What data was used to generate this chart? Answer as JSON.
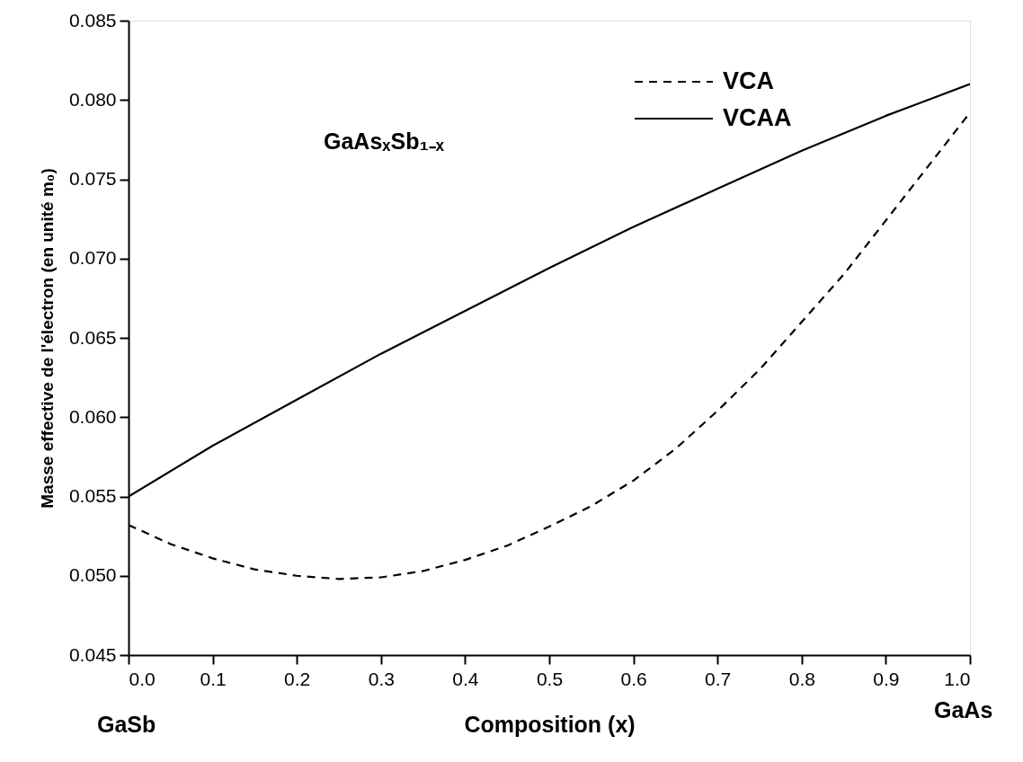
{
  "chart_data": {
    "type": "line",
    "xlabel": "Composition (x)",
    "ylabel": "Masse effective de l'électron  (en unité m₀)",
    "annotations": [
      "GaAsₓSb₁₋ₓ",
      "GaSb",
      "GaAs"
    ],
    "xlim": [
      0,
      1
    ],
    "ylim": [
      0.045,
      0.085
    ],
    "xticks": [
      {
        "value": 0,
        "label": "0.0"
      },
      {
        "value": 0.1,
        "label": "0.1"
      },
      {
        "value": 0.2,
        "label": "0.2"
      },
      {
        "value": 0.3,
        "label": "0.3"
      },
      {
        "value": 0.4,
        "label": "0.4"
      },
      {
        "value": 0.5,
        "label": "0.5"
      },
      {
        "value": 0.6,
        "label": "0.6"
      },
      {
        "value": 0.7,
        "label": "0.7"
      },
      {
        "value": 0.8,
        "label": "0.8"
      },
      {
        "value": 0.9,
        "label": "0.9"
      },
      {
        "value": 1,
        "label": "1.0"
      }
    ],
    "yticks": [
      {
        "value": 0.045,
        "label": "0.045"
      },
      {
        "value": 0.05,
        "label": "0.050"
      },
      {
        "value": 0.055,
        "label": "0.055"
      },
      {
        "value": 0.06,
        "label": "0.060"
      },
      {
        "value": 0.065,
        "label": "0.065"
      },
      {
        "value": 0.07,
        "label": "0.070"
      },
      {
        "value": 0.075,
        "label": "0.075"
      },
      {
        "value": 0.08,
        "label": "0.080"
      },
      {
        "value": 0.085,
        "label": "0.085"
      }
    ],
    "legend": "top right",
    "marker": "none",
    "series": [
      {
        "name": "VCA",
        "color": "#000000",
        "line_style": "dashed",
        "x": [
          0,
          0.05,
          0.1,
          0.15,
          0.2,
          0.25,
          0.3,
          0.35,
          0.4,
          0.45,
          0.5,
          0.55,
          0.6,
          0.65,
          0.7,
          0.75,
          0.8,
          0.85,
          0.9,
          0.95,
          1
        ],
        "values": [
          0.0532,
          0.052,
          0.0511,
          0.0504,
          0.05,
          0.0498,
          0.0499,
          0.0503,
          0.051,
          0.0519,
          0.0531,
          0.0544,
          0.056,
          0.058,
          0.0604,
          0.063,
          0.066,
          0.069,
          0.0724,
          0.0758,
          0.0792
        ]
      },
      {
        "name": "VCAA",
        "color": "#000000",
        "line_style": "solid",
        "x": [
          0,
          0.1,
          0.2,
          0.3,
          0.4,
          0.5,
          0.6,
          0.7,
          0.8,
          0.9,
          1
        ],
        "values": [
          0.055,
          0.0582,
          0.0611,
          0.064,
          0.0667,
          0.0694,
          0.072,
          0.0744,
          0.0768,
          0.079,
          0.081
        ]
      }
    ]
  }
}
